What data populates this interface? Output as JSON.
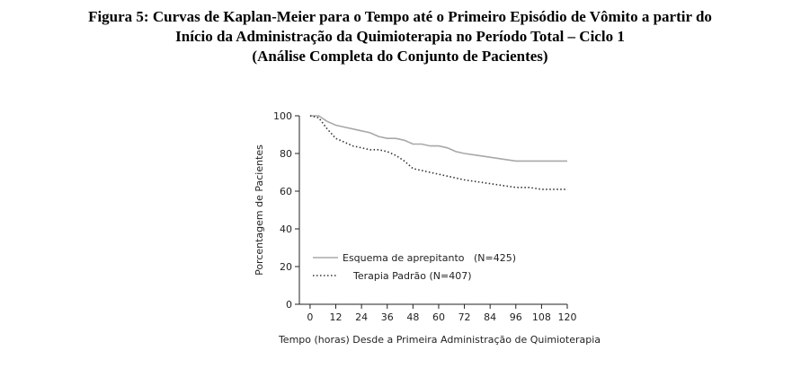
{
  "chart_data": {
    "type": "line",
    "title": [
      "Figura 5: Curvas de Kaplan-Meier para o Tempo até o Primeiro Episódio de Vômito a partir do",
      "Início da Administração da Quimioterapia no Período Total – Ciclo 1",
      "(Análise Completa do Conjunto de Pacientes)"
    ],
    "x_label": "Tempo (horas) Desde a Primeira Administração de Quimioterapia",
    "y_label": "Porcentagem de Pacientes",
    "x": [
      0,
      4,
      8,
      12,
      16,
      20,
      24,
      28,
      32,
      36,
      40,
      44,
      48,
      52,
      56,
      60,
      64,
      68,
      72,
      78,
      84,
      90,
      96,
      102,
      108,
      114,
      120
    ],
    "series": [
      {
        "name": "Esquema de aprepitanto   (N=425)",
        "color": "#a8a8a8",
        "linestyle": "solid",
        "values": [
          100,
          100,
          97,
          95,
          94,
          93,
          92,
          91,
          89,
          88,
          88,
          87,
          85,
          85,
          84,
          84,
          83,
          81,
          80,
          79,
          78,
          77,
          76,
          76,
          76,
          76,
          76
        ]
      },
      {
        "name": "Terapia Padrão (N=407)",
        "color": "#333333",
        "linestyle": "dotted",
        "values": [
          100,
          99,
          93,
          88,
          86,
          84,
          83,
          82,
          82,
          81,
          79,
          76,
          72,
          71,
          70,
          69,
          68,
          67,
          66,
          65,
          64,
          63,
          62,
          62,
          61,
          61,
          61
        ]
      }
    ],
    "xlim": [
      -5,
      120
    ],
    "ylim": [
      0,
      100
    ],
    "xticks": [
      0,
      12,
      24,
      36,
      48,
      60,
      72,
      84,
      96,
      108,
      120
    ],
    "yticks": [
      0,
      20,
      40,
      60,
      80,
      100
    ]
  }
}
